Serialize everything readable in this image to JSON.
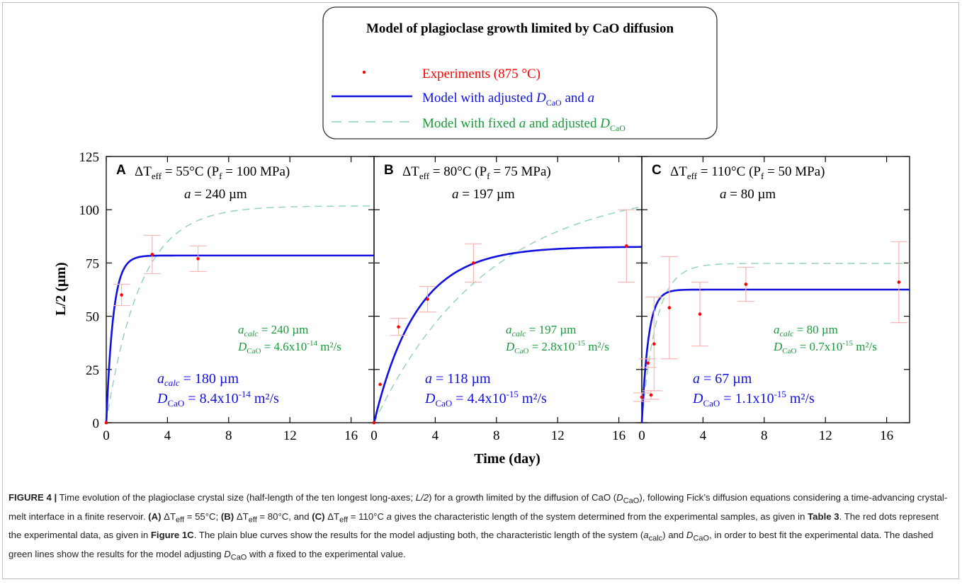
{
  "legend": {
    "title": "Model of plagioclase growth limited by CaO diffusion",
    "entries": [
      {
        "label": "Experiments (875 °C)",
        "color": "#ff0000",
        "style": "dot"
      },
      {
        "label": "Model with adjusted D_CaO and a",
        "label_main": "Model with adjusted ",
        "label_D": "D",
        "label_sub": "CaO",
        "label_tail": " and ",
        "label_a": "a",
        "color": "#1010e0",
        "style": "solid"
      },
      {
        "label": "Model with fixed a and adjusted D_CaO",
        "label_main": "Model with fixed ",
        "label_a": "a",
        "label_mid": " and adjusted ",
        "label_D": "D",
        "label_sub": "CaO",
        "color": "#1a9a3a",
        "style": "dashed"
      }
    ]
  },
  "colors": {
    "experiment": "#ff0000",
    "errorbar": "#f4b6b6",
    "model_adjusted": "#1010e0",
    "model_fixed": "#1a9a3a",
    "dashed_line": "#8fd3b0"
  },
  "chart_data": [
    {
      "type": "line",
      "panel": "A",
      "header": {
        "dT": "ΔT",
        "sub": "eff",
        "rest": " = 55°C (P",
        "psub": "f",
        "tail": " = 100 MPa)",
        "a_line": " = 240 µm"
      },
      "xlabel": "Time (day)",
      "ylabel": "L/2 (µm)",
      "xlim": [
        0,
        17.5
      ],
      "ylim": [
        0,
        125
      ],
      "xticks": [
        0,
        4,
        8,
        12,
        16
      ],
      "yticks": [
        0,
        25,
        50,
        75,
        100,
        125
      ],
      "experiments": [
        {
          "x": 0,
          "y": 0,
          "err": 0
        },
        {
          "x": 1,
          "y": 60,
          "err": 5
        },
        {
          "x": 3,
          "y": 79,
          "err": 9
        },
        {
          "x": 6,
          "y": 77,
          "err": 6
        }
      ],
      "model_adjusted": {
        "a_calc": "180 µm",
        "D": "8.4x10",
        "exp": "-14",
        "unit": " m²/s",
        "plateau": 78.5,
        "k": 2.2
      },
      "model_fixed": {
        "a_calc": "240 µm",
        "D": "4.6x10",
        "exp": "-14",
        "unit": " m²/s",
        "plateau": 101.8,
        "k": 0.45
      }
    },
    {
      "type": "line",
      "panel": "B",
      "header": {
        "dT": "ΔT",
        "sub": "eff",
        "rest": " = 80°C (P",
        "psub": "f",
        "tail": " = 75 MPa)",
        "a_line": " = 197 µm"
      },
      "xlabel": "Time (day)",
      "ylabel": "L/2 (µm)",
      "xlim": [
        0,
        17.5
      ],
      "ylim": [
        0,
        125
      ],
      "xticks": [
        0,
        4,
        8,
        12,
        16
      ],
      "yticks": [
        0,
        25,
        50,
        75,
        100,
        125
      ],
      "experiments": [
        {
          "x": 0,
          "y": 0,
          "err": 0
        },
        {
          "x": 0.4,
          "y": 18,
          "err": 0
        },
        {
          "x": 1.6,
          "y": 45,
          "err": 4
        },
        {
          "x": 3.5,
          "y": 58,
          "err": 6
        },
        {
          "x": 6.5,
          "y": 75,
          "err": 9
        },
        {
          "x": 16.5,
          "y": 83,
          "err": 17
        }
      ],
      "model_adjusted": {
        "a_calc": "118 µm",
        "D": "4.4x10",
        "exp": "-15",
        "unit": " m²/s",
        "plateau": 82.7,
        "k": 0.36
      },
      "model_fixed": {
        "a_calc": "197 µm",
        "D": "2.8x10",
        "exp": "-15",
        "unit": " m²/s",
        "plateau": 112,
        "k": 0.135
      }
    },
    {
      "type": "line",
      "panel": "C",
      "header": {
        "dT": "ΔT",
        "sub": "eff",
        "rest": " = 110°C (P",
        "psub": "f",
        "tail": " = 50 MPa)",
        "a_line": " = 80 µm"
      },
      "xlabel": "Time (day)",
      "ylabel": "L/2 (µm)",
      "xlim": [
        0,
        17.5
      ],
      "ylim": [
        0,
        125
      ],
      "xticks": [
        0,
        4,
        8,
        12,
        16
      ],
      "yticks": [
        0,
        25,
        50,
        75,
        100,
        125
      ],
      "experiments": [
        {
          "x": 0,
          "y": 12,
          "err": 2
        },
        {
          "x": 0.4,
          "y": 28,
          "err": 2
        },
        {
          "x": 0.6,
          "y": 13,
          "err": 2
        },
        {
          "x": 0.8,
          "y": 37,
          "err": 22
        },
        {
          "x": 1.8,
          "y": 54,
          "err": 24
        },
        {
          "x": 3.8,
          "y": 51,
          "err": 15
        },
        {
          "x": 6.8,
          "y": 65,
          "err": 8
        },
        {
          "x": 16.8,
          "y": 66,
          "err": 19
        }
      ],
      "model_adjusted": {
        "a_calc": "67 µm",
        "D": "1.1x10",
        "exp": "-15",
        "unit": " m²/s",
        "plateau": 62.5,
        "k": 2.3
      },
      "model_fixed": {
        "a_calc": "80 µm",
        "D": "0.7x10",
        "exp": "-15",
        "unit": " m²/s",
        "plateau": 74.8,
        "k": 1.05
      }
    }
  ],
  "caption": {
    "fig_label": "FIGURE 4 |",
    "intro": " Time evolution of the plagioclase crystal size (half-length of the ten longest long-axes; ",
    "l2": "L/2",
    "part2": ") for a growth limited by the diffusion of CaO (",
    "dcao_D": "D",
    "dcao_sub": "CaO",
    "part3": "), following Fick’s diffusion equations considering a time-advancing crystal-melt interface in a finite reservoir. ",
    "A": "(A)",
    "A_text": " ΔT",
    "eff": "eff",
    "A_val": " = 55°C; ",
    "B": "(B)",
    "B_val": " = 80°C, and ",
    "C": "(C)",
    "C_val": " = 110°C ",
    "a": "a",
    "part4": " gives the characteristic length of the system determined from the experimental samples, as given in ",
    "table": "Table 3",
    "part5": ". The red dots represent the experimental data, as given in ",
    "fig1c": "Figure 1C",
    "part6": ". The plain blue curves show the results for the model adjusting both, the characteristic length of the system (",
    "acalc_a": "a",
    "acalc_sub": "calc",
    "part7": ") and ",
    "part8": ", in order to best fit the experimental data. The dashed green lines show the results for the model adjusting ",
    "part9": " with ",
    "part10": " fixed to the experimental value."
  }
}
